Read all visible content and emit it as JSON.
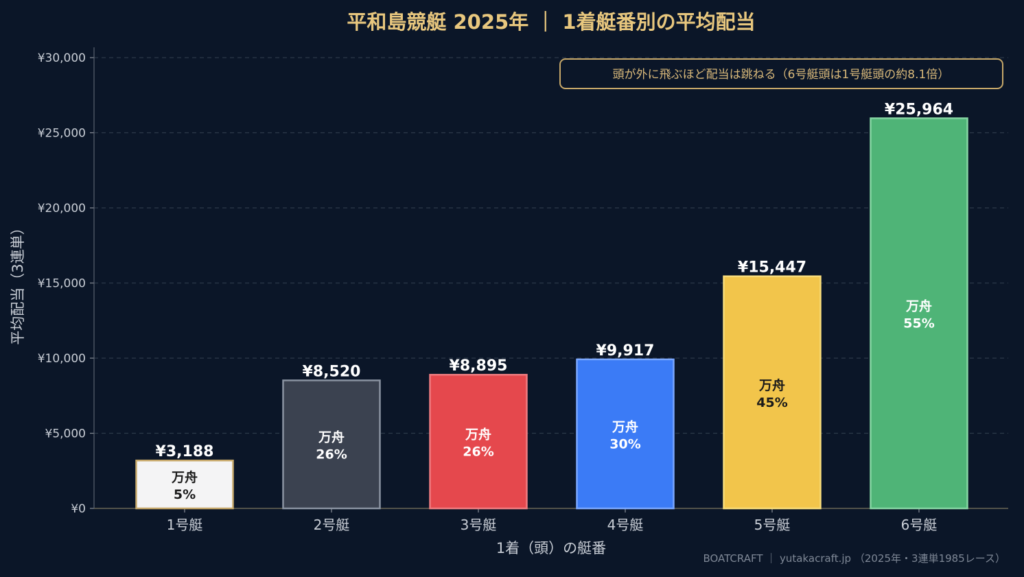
{
  "chart_data": {
    "type": "bar",
    "title": "平和島競艇 2025年 ｜ 1着艇番別の平均配当",
    "xlabel": "1着（頭）の艇番",
    "ylabel": "平均配当（3連単）",
    "ylim": [
      0,
      30000
    ],
    "yticks": [
      "¥0",
      "¥5,000",
      "¥10,000",
      "¥15,000",
      "¥20,000",
      "¥25,000",
      "¥30,000"
    ],
    "ytick_values": [
      0,
      5000,
      10000,
      15000,
      20000,
      25000,
      30000
    ],
    "grid": true,
    "categories": [
      "1号艇",
      "2号艇",
      "3号艇",
      "4号艇",
      "5号艇",
      "6号艇"
    ],
    "values": [
      3188,
      8520,
      8895,
      9917,
      15447,
      25964
    ],
    "value_labels": [
      "¥3,188",
      "¥8,520",
      "¥8,895",
      "¥9,917",
      "¥15,447",
      "¥25,964"
    ],
    "inner_label_title": "万舟",
    "manshu_rates": [
      "5%",
      "26%",
      "26%",
      "30%",
      "45%",
      "55%"
    ],
    "bar_colors": [
      "#f4f4f5",
      "#3b4250",
      "#e5484d",
      "#3b7bf6",
      "#f2c54b",
      "#4fb477"
    ],
    "bar_edge_colors": [
      "#c8a96a",
      "#8a93a1",
      "#f07c80",
      "#7aa7ff",
      "#f8dc7a",
      "#86d6a3"
    ],
    "inner_text_colors": [
      "#1a1a1a",
      "#ffffff",
      "#ffffff",
      "#ffffff",
      "#1a1a1a",
      "#ffffff"
    ],
    "annotation": "頭が外に飛ぶほど配当は跳ねる（6号艇頭は1号艇頭の約8.1倍）",
    "footer": "BOATCRAFT ｜ yutakacraft.jp （2025年・3連単1985レース）"
  },
  "colors": {
    "background": "#0b1628",
    "title": "#e8c77e",
    "axis_text": "#c9ced6",
    "grid": "#2c3a4a",
    "annotation_border": "#c8a96a",
    "annotation_text": "#d9b97a",
    "footer_text": "#7f8896"
  }
}
